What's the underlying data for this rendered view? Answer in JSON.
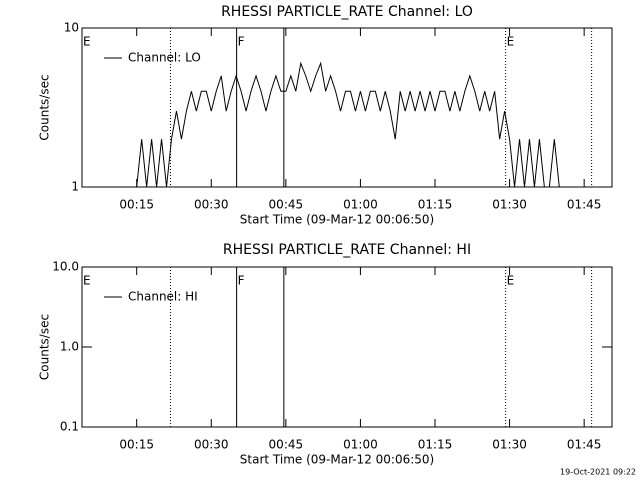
{
  "chart_data": [
    {
      "type": "line",
      "title": "RHESSI PARTICLE_RATE Channel: LO",
      "x_label": "Start Time (09-Mar-12 00:06:50)",
      "y_label": "Counts/sec",
      "x": [
        15,
        16,
        17,
        18,
        19,
        20,
        21,
        22,
        23,
        24,
        25,
        26,
        27,
        28,
        29,
        30,
        31,
        32,
        33,
        34,
        35,
        36,
        37,
        38,
        39,
        40,
        41,
        42,
        43,
        44,
        45,
        46,
        47,
        48,
        49,
        50,
        51,
        52,
        53,
        54,
        55,
        56,
        57,
        58,
        59,
        60,
        61,
        62,
        63,
        64,
        65,
        66,
        67,
        68,
        69,
        70,
        71,
        72,
        73,
        74,
        75,
        76,
        77,
        78,
        79,
        80,
        81,
        82,
        83,
        84,
        85,
        86,
        87,
        88,
        89,
        90,
        91,
        92,
        93,
        94,
        95,
        96,
        97,
        98,
        99,
        100,
        101
      ],
      "series": [
        {
          "name": "Channel: LO",
          "color": "#000000",
          "values": [
            1,
            2,
            1,
            2,
            1,
            2,
            1,
            2,
            3,
            2,
            3,
            4,
            3,
            4,
            4,
            3,
            4,
            5,
            3,
            4,
            5,
            4,
            3,
            4,
            5,
            4,
            3,
            4,
            5,
            4,
            4,
            5,
            4,
            6,
            5,
            4,
            5,
            6,
            4,
            5,
            4,
            3,
            4,
            4,
            3,
            4,
            3,
            4,
            4,
            3,
            4,
            3,
            2,
            4,
            3,
            4,
            3,
            4,
            3,
            4,
            3,
            4,
            4,
            3,
            4,
            3,
            4,
            5,
            4,
            3,
            4,
            3,
            4,
            2,
            3,
            2,
            1,
            2,
            1,
            2,
            1,
            2,
            1,
            1,
            2,
            1,
            1
          ]
        }
      ],
      "xlim": [
        4,
        110.6
      ],
      "xticks": [
        {
          "value": 15,
          "label": "00:15"
        },
        {
          "value": 30,
          "label": "00:30"
        },
        {
          "value": 45,
          "label": "00:45"
        },
        {
          "value": 60,
          "label": "01:00"
        },
        {
          "value": 75,
          "label": "01:15"
        },
        {
          "value": 90,
          "label": "01:30"
        },
        {
          "value": 105,
          "label": "01:45"
        }
      ],
      "ylim": [
        1,
        10
      ],
      "yticks": [
        1,
        10
      ],
      "y_scale": "log",
      "vlines": [
        {
          "x": 21.8,
          "style": "dotted"
        },
        {
          "x": 35.1,
          "style": "solid"
        },
        {
          "x": 44.6,
          "style": "solid"
        },
        {
          "x": 89.2,
          "style": "dotted"
        },
        {
          "x": 106.5,
          "style": "dotted"
        }
      ],
      "annotations": [
        {
          "text": "E",
          "x": 4
        },
        {
          "text": "F",
          "x": 35.1
        },
        {
          "text": "E",
          "x": 89.2
        }
      ]
    },
    {
      "type": "line",
      "title": "RHESSI PARTICLE_RATE Channel: HI",
      "x_label": "Start Time (09-Mar-12 00:06:50)",
      "y_label": "Counts/sec",
      "x": [],
      "series": [
        {
          "name": "Channel: HI",
          "color": "#000000",
          "values": []
        }
      ],
      "xlim": [
        4,
        110.6
      ],
      "xticks": [
        {
          "value": 15,
          "label": "00:15"
        },
        {
          "value": 30,
          "label": "00:30"
        },
        {
          "value": 45,
          "label": "00:45"
        },
        {
          "value": 60,
          "label": "01:00"
        },
        {
          "value": 75,
          "label": "01:15"
        },
        {
          "value": 90,
          "label": "01:30"
        },
        {
          "value": 105,
          "label": "01:45"
        }
      ],
      "ylim": [
        0.1,
        10
      ],
      "yticks": [
        0.1,
        {
          "value": 1,
          "label": "1.0"
        },
        {
          "value": 10,
          "label": "10.0"
        }
      ],
      "y_scale": "log",
      "vlines": [
        {
          "x": 21.8,
          "style": "dotted"
        },
        {
          "x": 35.1,
          "style": "solid"
        },
        {
          "x": 44.6,
          "style": "solid"
        },
        {
          "x": 89.2,
          "style": "dotted"
        },
        {
          "x": 106.5,
          "style": "dotted"
        }
      ],
      "annotations": [
        {
          "text": "E",
          "x": 4
        },
        {
          "text": "F",
          "x": 35.1
        },
        {
          "text": "E",
          "x": 89.2
        }
      ]
    }
  ],
  "footer": "19-Oct-2021 09:22"
}
